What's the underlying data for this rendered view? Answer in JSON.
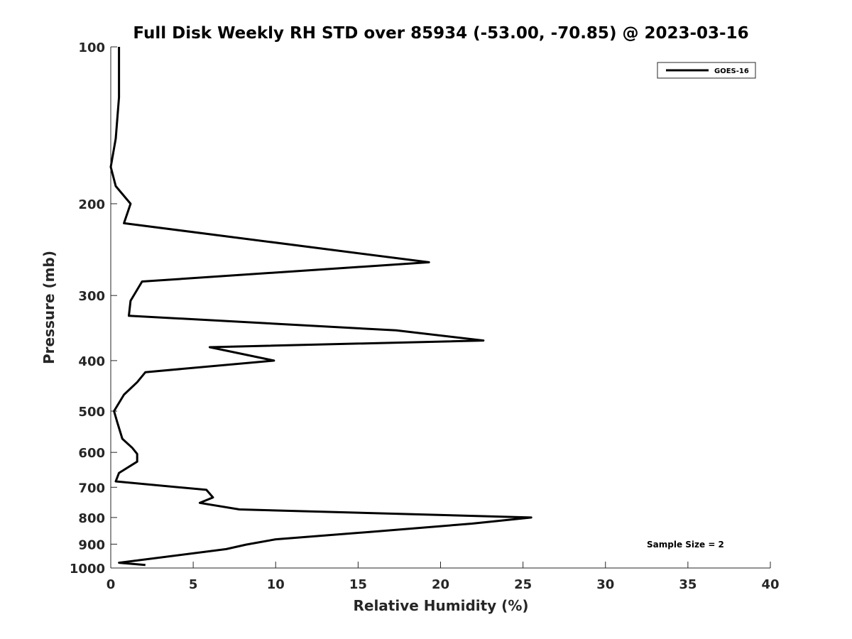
{
  "chart_data": {
    "type": "line",
    "title": "Full Disk Weekly RH STD over 85934 (-53.00, -70.85) @ 2023-03-16",
    "xlabel": "Relative Humidity (%)",
    "ylabel": "Pressure (mb)",
    "xlim": [
      0,
      40
    ],
    "ylim": [
      100,
      1000
    ],
    "y_scale": "log",
    "y_reversed": true,
    "x_ticks": [
      0,
      5,
      10,
      15,
      20,
      25,
      30,
      35,
      40
    ],
    "y_ticks": [
      100,
      200,
      300,
      400,
      500,
      600,
      700,
      800,
      900,
      1000
    ],
    "grid": false,
    "legend_position": "top-right",
    "annotation": "Sample Size = 2",
    "series": [
      {
        "name": "GOES-16",
        "color": "#000000",
        "points": [
          [
            0.5,
            100
          ],
          [
            0.5,
            125
          ],
          [
            0.3,
            150
          ],
          [
            0.0,
            170
          ],
          [
            0.3,
            185
          ],
          [
            1.2,
            200
          ],
          [
            0.8,
            218
          ],
          [
            19.3,
            259
          ],
          [
            1.9,
            282
          ],
          [
            1.2,
            307
          ],
          [
            1.1,
            328
          ],
          [
            17.3,
            350
          ],
          [
            22.6,
            366
          ],
          [
            6.0,
            377
          ],
          [
            9.9,
            400
          ],
          [
            2.1,
            421
          ],
          [
            1.6,
            440
          ],
          [
            0.8,
            465
          ],
          [
            0.2,
            500
          ],
          [
            0.4,
            526
          ],
          [
            0.7,
            565
          ],
          [
            1.3,
            588
          ],
          [
            1.6,
            604
          ],
          [
            1.6,
            625
          ],
          [
            0.5,
            657
          ],
          [
            0.3,
            682
          ],
          [
            5.8,
            708
          ],
          [
            6.2,
            732
          ],
          [
            5.4,
            750
          ],
          [
            7.8,
            772
          ],
          [
            25.5,
            800
          ],
          [
            21.9,
            822
          ],
          [
            15.9,
            852
          ],
          [
            10.0,
            881
          ],
          [
            8.2,
            902
          ],
          [
            7.0,
            920
          ],
          [
            0.5,
            977
          ],
          [
            2.1,
            987
          ]
        ]
      }
    ]
  }
}
